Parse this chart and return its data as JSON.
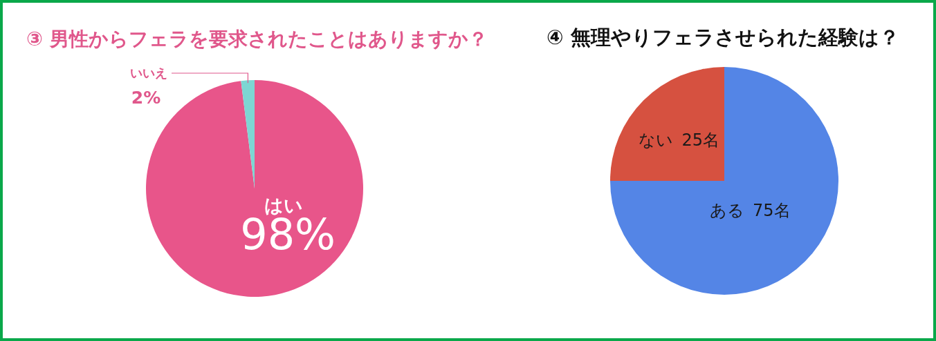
{
  "chart_data": [
    {
      "type": "pie",
      "title": "③ 男性からフェラを要求されたことはありますか？",
      "categories": [
        "はい",
        "いいえ"
      ],
      "values": [
        98,
        2
      ],
      "colors": [
        "#e8558a",
        "#7dd6d3"
      ],
      "value_labels": [
        "98%",
        "2%"
      ]
    },
    {
      "type": "pie",
      "title": "④ 無理やりフェラさせられた経験は？",
      "categories": [
        "ある",
        "ない"
      ],
      "values": [
        75,
        25
      ],
      "colors": [
        "#5485e6",
        "#d65140"
      ],
      "value_labels": [
        "75名",
        "25名"
      ]
    }
  ]
}
